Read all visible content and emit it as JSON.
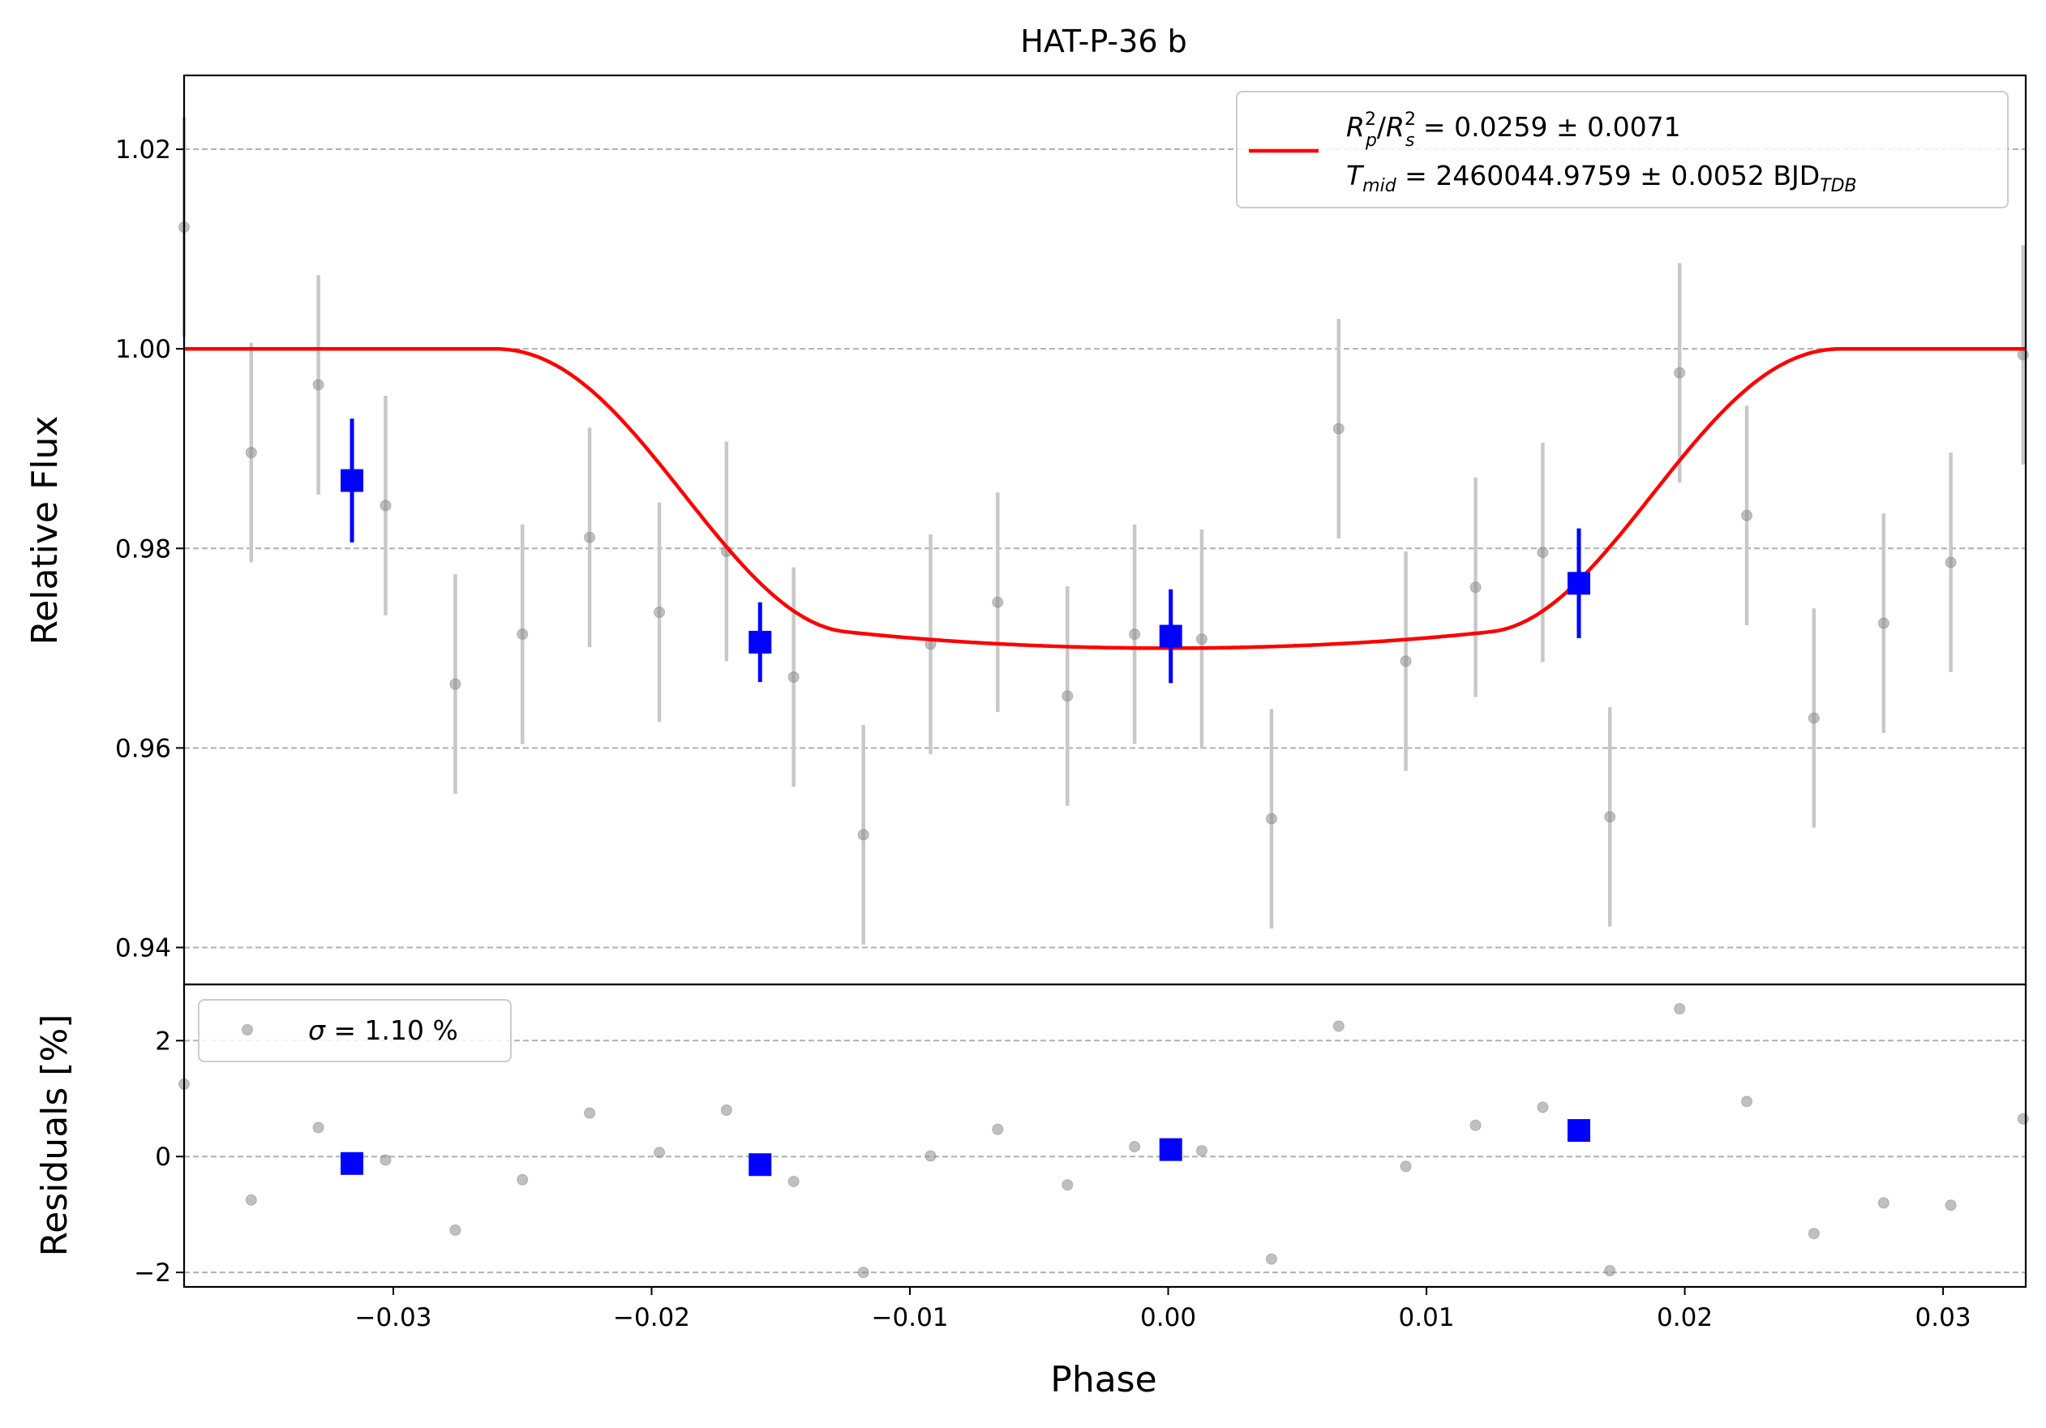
{
  "chart_data": [
    {
      "panel": "main",
      "type": "scatter",
      "title": "HAT-P-36 b",
      "xlabel": "",
      "ylabel": "Relative Flux",
      "xlim": [
        -0.0381,
        0.0332
      ],
      "ylim": [
        0.9363,
        1.0274
      ],
      "yticks": [
        0.94,
        0.96,
        0.98,
        1.0,
        1.02
      ],
      "ytick_labels": [
        "0.94",
        "0.96",
        "0.98",
        "1.00",
        "1.02"
      ],
      "grid": "horizontal-dashed",
      "legend_position": "top-right",
      "legend": {
        "line1": {
          "R": "R",
          "p_sub": "p",
          "p_sup": "2",
          "s": "R",
          "s_sub": "s",
          "s_sup": "2",
          "rest": " = 0.0259 ± 0.0071"
        },
        "line2": {
          "T": "T",
          "T_sub": "mid",
          "rest": " = 2460044.9759 ± 0.0052 BJD",
          "unit_sub": "TDB"
        }
      },
      "colors": {
        "data": "#8c8c8c",
        "error": "#c8c8c8",
        "binned": "#0000ff",
        "model": "#ff0000"
      },
      "series": [
        {
          "role": "raw-data",
          "points": [
            {
              "x": -0.0381,
              "y": 1.0122,
              "err": 0.011
            },
            {
              "x": -0.0355,
              "y": 0.9896,
              "err": 0.011
            },
            {
              "x": -0.0329,
              "y": 0.9964,
              "err": 0.011
            },
            {
              "x": -0.0303,
              "y": 0.9843,
              "err": 0.011
            },
            {
              "x": -0.0276,
              "y": 0.9664,
              "err": 0.011
            },
            {
              "x": -0.025,
              "y": 0.9714,
              "err": 0.011
            },
            {
              "x": -0.0224,
              "y": 0.9811,
              "err": 0.011
            },
            {
              "x": -0.0197,
              "y": 0.9736,
              "err": 0.011
            },
            {
              "x": -0.0171,
              "y": 0.9797,
              "err": 0.011
            },
            {
              "x": -0.0145,
              "y": 0.9671,
              "err": 0.011
            },
            {
              "x": -0.0118,
              "y": 0.9513,
              "err": 0.011
            },
            {
              "x": -0.0092,
              "y": 0.9704,
              "err": 0.011
            },
            {
              "x": -0.0066,
              "y": 0.9746,
              "err": 0.011
            },
            {
              "x": -0.0039,
              "y": 0.9652,
              "err": 0.011
            },
            {
              "x": -0.0013,
              "y": 0.9714,
              "err": 0.011
            },
            {
              "x": 0.0013,
              "y": 0.9709,
              "err": 0.011
            },
            {
              "x": 0.004,
              "y": 0.9529,
              "err": 0.011
            },
            {
              "x": 0.0066,
              "y": 0.992,
              "err": 0.011
            },
            {
              "x": 0.0092,
              "y": 0.9687,
              "err": 0.011
            },
            {
              "x": 0.0119,
              "y": 0.9761,
              "err": 0.011
            },
            {
              "x": 0.0145,
              "y": 0.9796,
              "err": 0.011
            },
            {
              "x": 0.0171,
              "y": 0.9531,
              "err": 0.011
            },
            {
              "x": 0.0198,
              "y": 0.9976,
              "err": 0.011
            },
            {
              "x": 0.0224,
              "y": 0.9833,
              "err": 0.011
            },
            {
              "x": 0.025,
              "y": 0.963,
              "err": 0.011
            },
            {
              "x": 0.0277,
              "y": 0.9725,
              "err": 0.011
            },
            {
              "x": 0.0303,
              "y": 0.9786,
              "err": 0.011
            },
            {
              "x": 0.0331,
              "y": 0.9994,
              "err": 0.011
            }
          ]
        },
        {
          "role": "binned",
          "points": [
            {
              "x": -0.0316,
              "y": 0.9868,
              "err": 0.0062
            },
            {
              "x": -0.0158,
              "y": 0.9706,
              "err": 0.004
            },
            {
              "x": 0.0001,
              "y": 0.9712,
              "err": 0.0047
            },
            {
              "x": 0.0159,
              "y": 0.9765,
              "err": 0.0055
            }
          ]
        },
        {
          "role": "model",
          "params": {
            "depth": 0.0259,
            "phase_contact": 0.0261,
            "phase_total": 0.0125,
            "limb_dark": 0.45
          }
        }
      ]
    },
    {
      "panel": "residuals",
      "type": "scatter",
      "xlabel": "Phase",
      "ylabel": "Residuals [%]",
      "xlim": [
        -0.0381,
        0.0332
      ],
      "ylim": [
        -2.25,
        2.97
      ],
      "yticks": [
        -2,
        0,
        2
      ],
      "ytick_labels": [
        "−2",
        "0",
        "2"
      ],
      "xticks": [
        -0.03,
        -0.02,
        -0.01,
        0.0,
        0.01,
        0.02,
        0.03
      ],
      "xtick_labels": [
        "−0.03",
        "−0.02",
        "−0.01",
        "0.00",
        "0.01",
        "0.02",
        "0.03"
      ],
      "grid": "horizontal-dashed",
      "legend_position": "top-left",
      "legend": {
        "sigma_symbol": "σ",
        "text": " = 1.10 %"
      },
      "series": [
        {
          "role": "raw-residuals",
          "points": [
            {
              "x": -0.0381,
              "y": 1.25
            },
            {
              "x": -0.0355,
              "y": -0.75
            },
            {
              "x": -0.0329,
              "y": 0.5
            },
            {
              "x": -0.0303,
              "y": -0.06
            },
            {
              "x": -0.0276,
              "y": -1.27
            },
            {
              "x": -0.025,
              "y": -0.4
            },
            {
              "x": -0.0224,
              "y": 0.75
            },
            {
              "x": -0.0197,
              "y": 0.07
            },
            {
              "x": -0.0171,
              "y": 0.8
            },
            {
              "x": -0.0145,
              "y": -0.43
            },
            {
              "x": -0.0118,
              "y": -2.0
            },
            {
              "x": -0.0092,
              "y": 0.01
            },
            {
              "x": -0.0066,
              "y": 0.47
            },
            {
              "x": -0.0039,
              "y": -0.49
            },
            {
              "x": -0.0013,
              "y": 0.17
            },
            {
              "x": 0.0013,
              "y": 0.1
            },
            {
              "x": 0.004,
              "y": -1.77
            },
            {
              "x": 0.0066,
              "y": 2.25
            },
            {
              "x": 0.0092,
              "y": -0.17
            },
            {
              "x": 0.0119,
              "y": 0.54
            },
            {
              "x": 0.0145,
              "y": 0.85
            },
            {
              "x": 0.0171,
              "y": -1.97
            },
            {
              "x": 0.0198,
              "y": 2.55
            },
            {
              "x": 0.0224,
              "y": 0.95
            },
            {
              "x": 0.025,
              "y": -1.33
            },
            {
              "x": 0.0277,
              "y": -0.8
            },
            {
              "x": 0.0303,
              "y": -0.84
            },
            {
              "x": 0.0331,
              "y": 0.65
            }
          ]
        },
        {
          "role": "binned-residuals",
          "points": [
            {
              "x": -0.0316,
              "y": -0.12
            },
            {
              "x": -0.0158,
              "y": -0.14
            },
            {
              "x": 0.0001,
              "y": 0.12
            },
            {
              "x": 0.0159,
              "y": 0.45
            }
          ]
        }
      ]
    }
  ]
}
